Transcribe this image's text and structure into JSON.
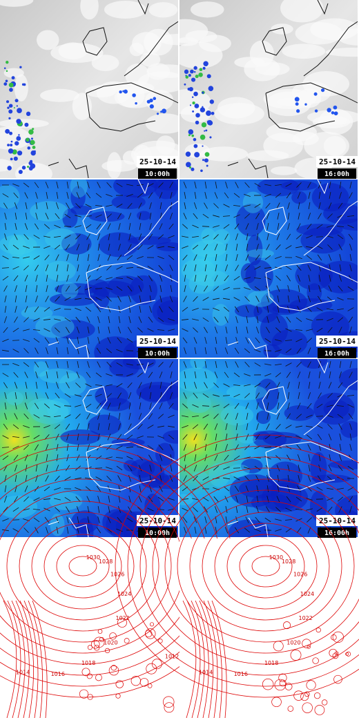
{
  "rows": [
    {
      "name": "precipitation",
      "panels": [
        {
          "date": "25-10-14",
          "time": "10:00h"
        },
        {
          "date": "25-10-14",
          "time": "16:00h"
        }
      ]
    },
    {
      "name": "wind-low",
      "panels": [
        {
          "date": "25-10-14",
          "time": "10:00h"
        },
        {
          "date": "25-10-14",
          "time": "16:00h"
        }
      ]
    },
    {
      "name": "wind-high",
      "panels": [
        {
          "date": "25-10-14",
          "time": "10:00h"
        },
        {
          "date": "25-10-14",
          "time": "16:00h"
        }
      ]
    }
  ],
  "pressure": [
    {
      "labels": [
        "1030",
        "1028",
        "1026",
        "1024",
        "1022",
        "1020",
        "1018",
        "1016",
        "1014",
        "1012"
      ]
    },
    {
      "labels": [
        "1030",
        "1028",
        "1026",
        "1024",
        "1022",
        "1020",
        "1018",
        "1016",
        "1014",
        "1012"
      ]
    }
  ]
}
